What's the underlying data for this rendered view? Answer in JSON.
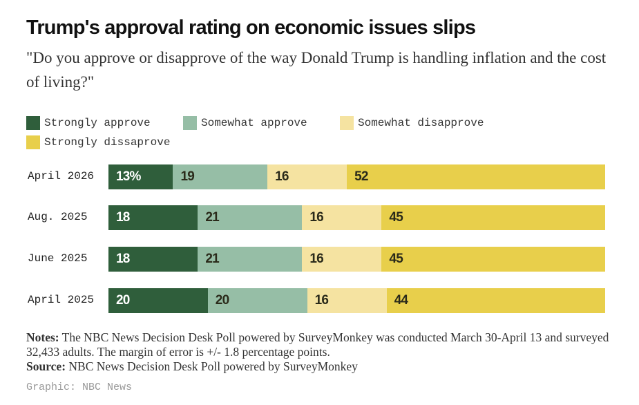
{
  "title": "Trump's approval rating on economic issues slips",
  "subtitle": "\"Do you approve or disapprove of the way Donald Trump is handling inflation and the cost of living?\"",
  "colors": {
    "strongly_approve": "#2f5e3b",
    "somewhat_approve": "#96bea6",
    "somewhat_disapprove": "#f5e3a1",
    "strongly_disapprove": "#e8cf4b"
  },
  "chart_data": {
    "type": "bar",
    "orientation": "horizontal-stacked",
    "categories": [
      "April 2026",
      "Aug. 2025",
      "June 2025",
      "April 2025"
    ],
    "series": [
      {
        "name": "Strongly approve",
        "values": [
          13,
          18,
          18,
          20
        ]
      },
      {
        "name": "Somewhat approve",
        "values": [
          19,
          21,
          21,
          20
        ]
      },
      {
        "name": "Somewhat disapprove",
        "values": [
          16,
          16,
          16,
          16
        ]
      },
      {
        "name": "Strongly dissaprove",
        "values": [
          52,
          45,
          45,
          44
        ]
      }
    ],
    "first_label_suffix": "%",
    "legend_position": "top-left",
    "xlim": [
      0,
      100
    ]
  },
  "notes": {
    "label": "Notes:",
    "text": " The NBC News Decision Desk Poll powered by SurveyMonkey was conducted March 30-April 13 and surveyed 32,433 adults. The margin of error is +/- 1.8 percentage points."
  },
  "source": {
    "label": "Source:",
    "text": " NBC News Decision Desk Poll powered by SurveyMonkey"
  },
  "credit": "Graphic: NBC News"
}
